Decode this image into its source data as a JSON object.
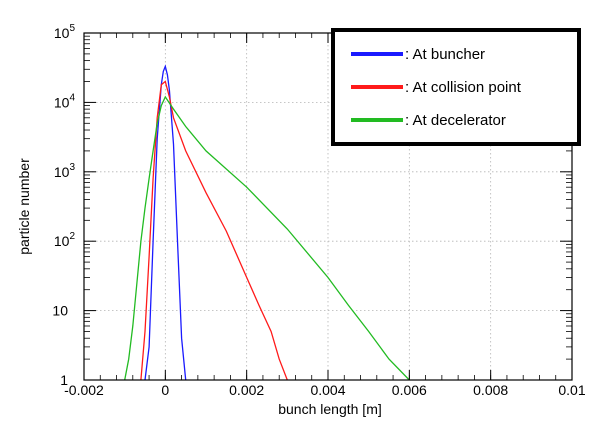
{
  "chart_data": {
    "type": "line",
    "xlabel": "bunch length [m]",
    "ylabel": "particle number",
    "xlim": [
      -0.002,
      0.01
    ],
    "ylim": [
      1,
      100000
    ],
    "y_scale": "log",
    "grid": true,
    "legend_placement": "top-right",
    "x_ticks": [
      {
        "value": -0.002,
        "label": "-0.002"
      },
      {
        "value": 0,
        "label": "0"
      },
      {
        "value": 0.002,
        "label": "0.002"
      },
      {
        "value": 0.004,
        "label": "0.004"
      },
      {
        "value": 0.006,
        "label": "0.006"
      },
      {
        "value": 0.008,
        "label": "0.008"
      },
      {
        "value": 0.01,
        "label": "0.01"
      }
    ],
    "y_ticks": [
      {
        "value": 1,
        "base": "1",
        "exp": ""
      },
      {
        "value": 10,
        "base": "10",
        "exp": ""
      },
      {
        "value": 100,
        "base": "10",
        "exp": "2"
      },
      {
        "value": 1000,
        "base": "10",
        "exp": "3"
      },
      {
        "value": 10000,
        "base": "10",
        "exp": "4"
      },
      {
        "value": 100000,
        "base": "10",
        "exp": "5"
      }
    ],
    "series": [
      {
        "name": ": At buncher",
        "color": "#1a1aff",
        "x": [
          -0.0005,
          -0.0004,
          -0.0003,
          -0.0002,
          -0.0001,
          -5e-05,
          0,
          5e-05,
          0.0001,
          0.0002,
          0.0003,
          0.0004,
          0.0005
        ],
        "y": [
          1,
          3,
          100,
          3000,
          18000,
          28000,
          33000,
          25000,
          15000,
          2500,
          100,
          4,
          1
        ]
      },
      {
        "name": ": At collision point",
        "color": "#ff1a1a",
        "x": [
          -0.0006,
          -0.0005,
          -0.0004,
          -0.0003,
          -0.0002,
          -0.0001,
          0,
          0.0001,
          0.0002,
          0.0005,
          0.001,
          0.0015,
          0.002,
          0.0023,
          0.0026,
          0.0028,
          0.003
        ],
        "y": [
          1,
          5,
          60,
          800,
          6000,
          18000,
          20000,
          12000,
          6000,
          2000,
          500,
          140,
          30,
          12,
          5,
          2,
          1
        ]
      },
      {
        "name": ": At decelerator",
        "color": "#22bb22",
        "x": [
          -0.001,
          -0.0009,
          -0.0008,
          -0.0007,
          -0.0006,
          -0.0005,
          -0.0004,
          -0.0003,
          -0.0002,
          -0.0001,
          0,
          0.0002,
          0.0005,
          0.001,
          0.002,
          0.003,
          0.004,
          0.0045,
          0.005,
          0.0055,
          0.006
        ],
        "y": [
          1,
          2,
          6,
          25,
          100,
          300,
          800,
          2000,
          5000,
          9000,
          12000,
          8000,
          4500,
          2000,
          600,
          150,
          30,
          12,
          5,
          2,
          1
        ]
      }
    ]
  }
}
